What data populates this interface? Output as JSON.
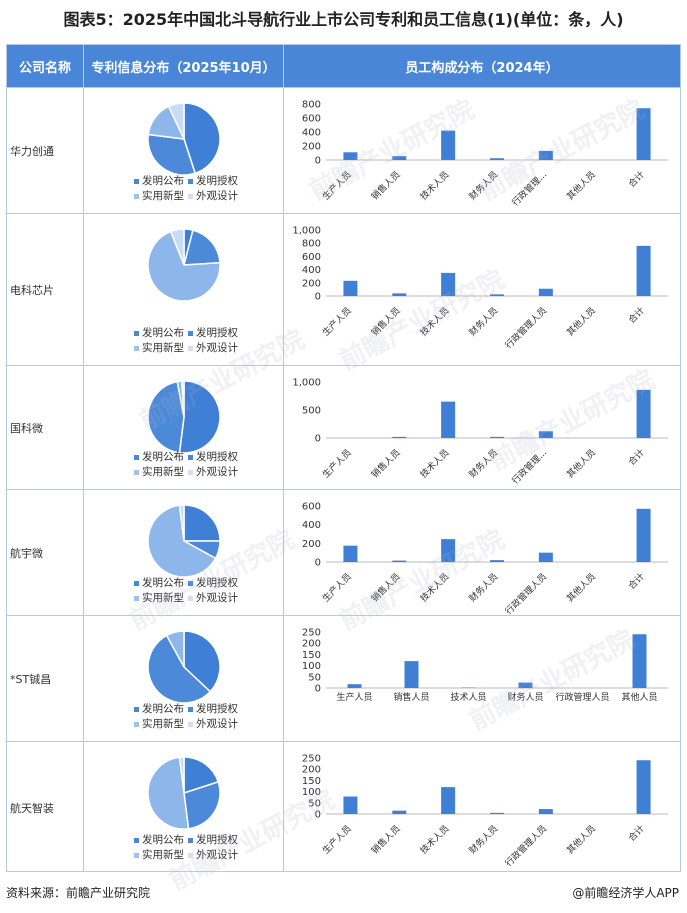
{
  "title": "图表5：2025年中国北斗导航行业上市公司专利和员工信息(1)(单位：条，人)",
  "header": {
    "col1": "公司名称",
    "col2": "专利信息分布（2025年10月）",
    "col3": "员工构成分布（2024年）"
  },
  "legend": {
    "items": [
      "发明公布",
      "发明授权",
      "实用新型",
      "外观设计"
    ],
    "colors": [
      "#4a86d8",
      "#4a86d8",
      "#9cc2f2",
      "#cfe0f8"
    ]
  },
  "pie_colors": [
    "#3f7fd6",
    "#4c8ad9",
    "#8db6ea",
    "#c8dcf6"
  ],
  "bar_color": "#3f7fd6",
  "footer": {
    "source": "资料来源：前瞻产业研究院",
    "brand": "@前瞻经济学人APP"
  },
  "watermark": "前瞻产业研究院",
  "chart_data": [
    {
      "company": "华力创通",
      "pie": {
        "type": "pie",
        "labels": [
          "发明公布",
          "发明授权",
          "实用新型",
          "外观设计"
        ],
        "values": [
          45,
          32,
          16,
          7
        ]
      },
      "bar": {
        "type": "bar",
        "categories": [
          "生产人员",
          "销售人员",
          "技术人员",
          "财务人员",
          "行政管理...",
          "其他人员",
          "合计"
        ],
        "values": [
          110,
          55,
          420,
          25,
          130,
          0,
          740
        ],
        "yticks": [
          "0",
          "200",
          "400",
          "600",
          "800"
        ],
        "ylim": [
          0,
          800
        ]
      }
    },
    {
      "company": "电科芯片",
      "pie": {
        "type": "pie",
        "labels": [
          "发明公布",
          "发明授权",
          "实用新型",
          "外观设计"
        ],
        "values": [
          4,
          20,
          70,
          6
        ]
      },
      "bar": {
        "type": "bar",
        "categories": [
          "生产人员",
          "销售人员",
          "技术人员",
          "财务人员",
          "行政管理人员",
          "其他人员",
          "合计"
        ],
        "values": [
          230,
          40,
          350,
          25,
          110,
          0,
          760
        ],
        "yticks": [
          "0",
          "200",
          "400",
          "600",
          "800",
          "1,000"
        ],
        "ylim": [
          0,
          1000
        ]
      }
    },
    {
      "company": "国科微",
      "pie": {
        "type": "pie",
        "labels": [
          "发明公布",
          "发明授权",
          "实用新型",
          "外观设计"
        ],
        "values": [
          52,
          45,
          2,
          1
        ]
      },
      "bar": {
        "type": "bar",
        "categories": [
          "生产人员",
          "销售人员",
          "技术人员",
          "财务人员",
          "行政管理...",
          "其他人员",
          "合计"
        ],
        "values": [
          0,
          20,
          650,
          20,
          120,
          0,
          860
        ],
        "yticks": [
          "0",
          "500",
          "1,000"
        ],
        "ylim": [
          0,
          1000
        ]
      }
    },
    {
      "company": "航宇微",
      "pie": {
        "type": "pie",
        "labels": [
          "发明公布",
          "发明授权",
          "实用新型",
          "外观设计"
        ],
        "values": [
          25,
          8,
          65,
          2
        ]
      },
      "bar": {
        "type": "bar",
        "categories": [
          "生产人员",
          "销售人员",
          "技术人员",
          "财务人员",
          "行政管理人员",
          "其他人员",
          "合计"
        ],
        "values": [
          175,
          15,
          245,
          20,
          100,
          0,
          570
        ],
        "yticks": [
          "0",
          "200",
          "400",
          "600"
        ],
        "ylim": [
          0,
          600
        ]
      }
    },
    {
      "company": "*ST铖昌",
      "pie": {
        "type": "pie",
        "labels": [
          "发明公布",
          "发明授权",
          "实用新型",
          "外观设计"
        ],
        "values": [
          37,
          55,
          8,
          0
        ]
      },
      "bar": {
        "type": "bar",
        "categories": [
          "生产人员",
          "销售人员",
          "技术人员",
          "财务人员",
          "行政管理人员",
          "其他人员"
        ],
        "values": [
          17,
          120,
          2,
          24,
          0,
          240
        ],
        "yticks": [
          "0",
          "50",
          "100",
          "150",
          "200",
          "250"
        ],
        "ylim": [
          0,
          250
        ]
      }
    },
    {
      "company": "航天智装",
      "pie": {
        "type": "pie",
        "labels": [
          "发明公布",
          "发明授权",
          "实用新型",
          "外观设计"
        ],
        "values": [
          20,
          28,
          50,
          2
        ]
      },
      "bar": {
        "type": "bar",
        "categories": [
          "生产人员",
          "销售人员",
          "技术人员",
          "财务人员",
          "行政管理人员",
          "其他人员",
          "合计"
        ],
        "values": [
          78,
          15,
          120,
          5,
          22,
          0,
          240
        ],
        "yticks": [
          "0",
          "50",
          "100",
          "150",
          "200",
          "250"
        ],
        "ylim": [
          0,
          250
        ]
      }
    }
  ]
}
